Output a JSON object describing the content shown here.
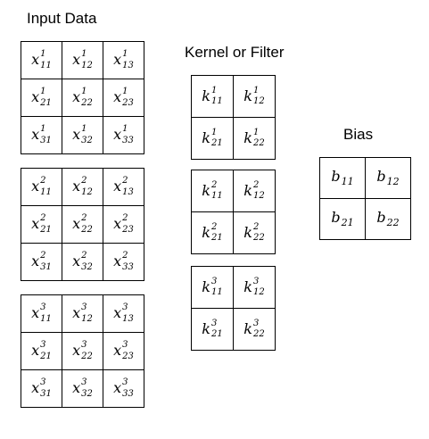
{
  "input_data": {
    "title": "Input Data",
    "grids": [
      {
        "channel": "1",
        "cells": [
          [
            {
              "sym": "x",
              "sup": "1",
              "sub": "11"
            },
            {
              "sym": "x",
              "sup": "1",
              "sub": "12"
            },
            {
              "sym": "x",
              "sup": "1",
              "sub": "13"
            }
          ],
          [
            {
              "sym": "x",
              "sup": "1",
              "sub": "21"
            },
            {
              "sym": "x",
              "sup": "1",
              "sub": "22"
            },
            {
              "sym": "x",
              "sup": "1",
              "sub": "23"
            }
          ],
          [
            {
              "sym": "x",
              "sup": "1",
              "sub": "31"
            },
            {
              "sym": "x",
              "sup": "1",
              "sub": "32"
            },
            {
              "sym": "x",
              "sup": "1",
              "sub": "33"
            }
          ]
        ]
      },
      {
        "channel": "2",
        "cells": [
          [
            {
              "sym": "x",
              "sup": "2",
              "sub": "11"
            },
            {
              "sym": "x",
              "sup": "2",
              "sub": "12"
            },
            {
              "sym": "x",
              "sup": "2",
              "sub": "13"
            }
          ],
          [
            {
              "sym": "x",
              "sup": "2",
              "sub": "21"
            },
            {
              "sym": "x",
              "sup": "2",
              "sub": "22"
            },
            {
              "sym": "x",
              "sup": "2",
              "sub": "23"
            }
          ],
          [
            {
              "sym": "x",
              "sup": "2",
              "sub": "31"
            },
            {
              "sym": "x",
              "sup": "2",
              "sub": "32"
            },
            {
              "sym": "x",
              "sup": "2",
              "sub": "33"
            }
          ]
        ]
      },
      {
        "channel": "3",
        "cells": [
          [
            {
              "sym": "x",
              "sup": "3",
              "sub": "11"
            },
            {
              "sym": "x",
              "sup": "3",
              "sub": "12"
            },
            {
              "sym": "x",
              "sup": "3",
              "sub": "13"
            }
          ],
          [
            {
              "sym": "x",
              "sup": "3",
              "sub": "21"
            },
            {
              "sym": "x",
              "sup": "3",
              "sub": "22"
            },
            {
              "sym": "x",
              "sup": "3",
              "sub": "23"
            }
          ],
          [
            {
              "sym": "x",
              "sup": "3",
              "sub": "31"
            },
            {
              "sym": "x",
              "sup": "3",
              "sub": "32"
            },
            {
              "sym": "x",
              "sup": "3",
              "sub": "33"
            }
          ]
        ]
      }
    ]
  },
  "kernel": {
    "title": "Kernel or Filter",
    "grids": [
      {
        "channel": "1",
        "cells": [
          [
            {
              "sym": "k",
              "sup": "1",
              "sub": "11"
            },
            {
              "sym": "k",
              "sup": "1",
              "sub": "12"
            }
          ],
          [
            {
              "sym": "k",
              "sup": "1",
              "sub": "21"
            },
            {
              "sym": "k",
              "sup": "1",
              "sub": "22"
            }
          ]
        ]
      },
      {
        "channel": "2",
        "cells": [
          [
            {
              "sym": "k",
              "sup": "2",
              "sub": "11"
            },
            {
              "sym": "k",
              "sup": "2",
              "sub": "12"
            }
          ],
          [
            {
              "sym": "k",
              "sup": "2",
              "sub": "21"
            },
            {
              "sym": "k",
              "sup": "2",
              "sub": "22"
            }
          ]
        ]
      },
      {
        "channel": "3",
        "cells": [
          [
            {
              "sym": "k",
              "sup": "3",
              "sub": "11"
            },
            {
              "sym": "k",
              "sup": "3",
              "sub": "12"
            }
          ],
          [
            {
              "sym": "k",
              "sup": "3",
              "sub": "21"
            },
            {
              "sym": "k",
              "sup": "3",
              "sub": "22"
            }
          ]
        ]
      }
    ]
  },
  "bias": {
    "title": "Bias",
    "cells": [
      [
        {
          "sym": "b",
          "sub": "11"
        },
        {
          "sym": "b",
          "sub": "12"
        }
      ],
      [
        {
          "sym": "b",
          "sub": "21"
        },
        {
          "sym": "b",
          "sub": "22"
        }
      ]
    ]
  }
}
